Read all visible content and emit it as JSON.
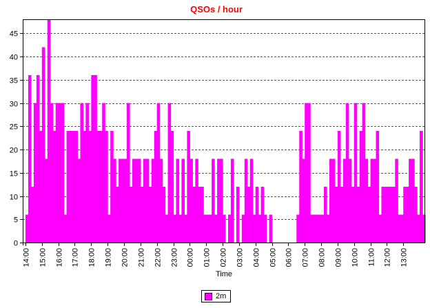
{
  "colors": {
    "bar": "#ff00ff",
    "title": "#ff0000",
    "grid": "#555555",
    "axis": "#000000"
  },
  "chart_data": {
    "type": "bar",
    "title": "QSOs / hour",
    "xlabel": "Time",
    "ylabel": "",
    "ylim": [
      0,
      48
    ],
    "yticks": [
      0,
      5,
      10,
      15,
      20,
      25,
      30,
      35,
      40,
      45
    ],
    "grid": true,
    "legend": "bottom-center",
    "interval_minutes": 10,
    "start_time": "13:50",
    "xtick_labels": [
      "14:00",
      "15:00",
      "16:00",
      "17:00",
      "18:00",
      "19:00",
      "20:00",
      "21:00",
      "22:00",
      "23:00",
      "00:00",
      "01:00",
      "02:00",
      "03:00",
      "04:00",
      "05:00",
      "06:00",
      "07:00",
      "08:00",
      "09:00",
      "10:00",
      "11:00",
      "12:00",
      "13:00"
    ],
    "series": [
      {
        "name": "2m",
        "color": "#ff00ff",
        "values": [
          0,
          6,
          36,
          12,
          30,
          36,
          24,
          42,
          18,
          48,
          30,
          24,
          30,
          30,
          30,
          6,
          24,
          24,
          24,
          24,
          18,
          30,
          24,
          30,
          24,
          36,
          36,
          24,
          24,
          30,
          24,
          6,
          24,
          18,
          12,
          18,
          18,
          18,
          30,
          12,
          18,
          18,
          18,
          12,
          18,
          18,
          12,
          18,
          24,
          30,
          18,
          12,
          6,
          30,
          24,
          6,
          18,
          6,
          18,
          6,
          24,
          18,
          12,
          18,
          12,
          12,
          6,
          6,
          6,
          18,
          6,
          18,
          18,
          6,
          0,
          6,
          18,
          0,
          12,
          0,
          6,
          18,
          12,
          18,
          6,
          12,
          6,
          12,
          6,
          0,
          6,
          0,
          0,
          0,
          0,
          0,
          0,
          0,
          0,
          0,
          6,
          24,
          18,
          30,
          30,
          6,
          6,
          6,
          6,
          6,
          12,
          6,
          18,
          18,
          12,
          24,
          12,
          18,
          30,
          18,
          12,
          30,
          12,
          24,
          30,
          18,
          12,
          18,
          18,
          24,
          6,
          12,
          12,
          12,
          12,
          12,
          18,
          6,
          6,
          12,
          12,
          18,
          18,
          12,
          6,
          24,
          6
        ]
      }
    ]
  }
}
